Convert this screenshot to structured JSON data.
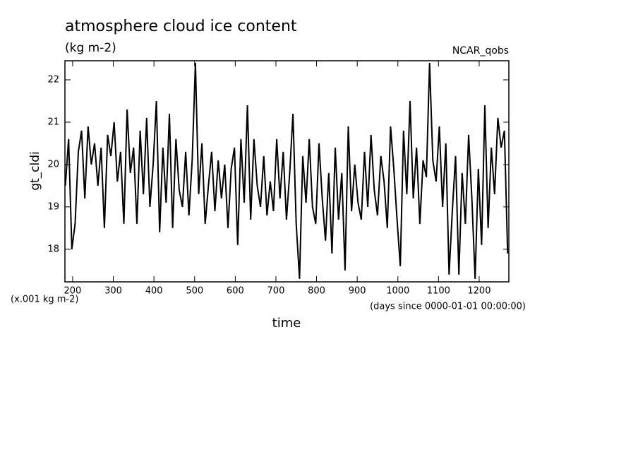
{
  "chart_data": {
    "type": "line",
    "title": "atmosphere cloud ice content",
    "subtitle": "(kg m-2)",
    "source": "NCAR_qobs",
    "y_label": "gt_cldi",
    "y_units": "(x.001 kg m-2)",
    "x_label": "time",
    "x_units": "(days since 0000-01-01 00:00:00)",
    "color": "#000000",
    "x": [
      182,
      190,
      198,
      206,
      214,
      222,
      230,
      238,
      246,
      254,
      262,
      270,
      278,
      286,
      294,
      302,
      310,
      318,
      326,
      334,
      342,
      350,
      358,
      366,
      374,
      382,
      390,
      398,
      406,
      414,
      422,
      430,
      438,
      446,
      454,
      462,
      470,
      478,
      486,
      494,
      502,
      510,
      518,
      526,
      534,
      542,
      550,
      558,
      566,
      574,
      582,
      590,
      598,
      606,
      614,
      622,
      630,
      638,
      646,
      654,
      662,
      670,
      678,
      686,
      694,
      702,
      710,
      718,
      726,
      734,
      742,
      750,
      758,
      766,
      774,
      782,
      790,
      798,
      806,
      814,
      822,
      830,
      838,
      846,
      854,
      862,
      870,
      878,
      886,
      894,
      902,
      910,
      918,
      926,
      934,
      942,
      950,
      958,
      966,
      974,
      982,
      990,
      998,
      1006,
      1014,
      1022,
      1030,
      1038,
      1046,
      1054,
      1062,
      1070,
      1078,
      1086,
      1094,
      1102,
      1110,
      1118,
      1126,
      1134,
      1142,
      1150,
      1158,
      1166,
      1174,
      1182,
      1190,
      1198,
      1206,
      1214,
      1222,
      1230,
      1238,
      1246,
      1254,
      1262,
      1270
    ],
    "values": [
      19.5,
      20.6,
      18.0,
      18.6,
      20.3,
      20.8,
      19.2,
      20.9,
      20.0,
      20.5,
      19.5,
      20.4,
      18.5,
      20.7,
      20.2,
      21.0,
      19.6,
      20.3,
      18.6,
      21.3,
      19.8,
      20.4,
      18.6,
      20.8,
      19.3,
      21.1,
      19.0,
      20.0,
      21.5,
      18.4,
      20.4,
      19.1,
      21.2,
      18.5,
      20.6,
      19.4,
      19.0,
      20.3,
      18.8,
      20.1,
      22.4,
      19.3,
      20.5,
      18.6,
      19.5,
      20.3,
      18.9,
      20.1,
      19.2,
      20.0,
      18.5,
      19.9,
      20.4,
      18.1,
      20.6,
      19.1,
      21.4,
      18.7,
      20.6,
      19.5,
      19.0,
      20.2,
      18.8,
      19.6,
      18.9,
      20.6,
      19.2,
      20.3,
      18.7,
      19.8,
      21.2,
      18.6,
      17.3,
      20.2,
      19.1,
      20.6,
      19.0,
      18.6,
      20.5,
      19.2,
      18.2,
      19.8,
      17.9,
      20.4,
      18.7,
      19.8,
      17.5,
      20.9,
      18.9,
      20.0,
      19.1,
      18.7,
      20.3,
      19.0,
      20.7,
      19.4,
      18.8,
      20.2,
      19.6,
      18.5,
      20.9,
      19.9,
      18.7,
      17.6,
      20.8,
      19.3,
      21.5,
      19.2,
      20.4,
      18.6,
      20.1,
      19.7,
      22.4,
      20.1,
      19.6,
      20.9,
      19.0,
      20.5,
      17.4,
      18.9,
      20.2,
      17.4,
      19.8,
      18.6,
      20.7,
      19.2,
      17.3,
      19.9,
      18.1,
      21.4,
      18.5,
      20.4,
      19.3,
      21.1,
      20.4,
      20.8,
      17.9
    ],
    "xlim": [
      181,
      1273
    ],
    "ylim": [
      17.23,
      22.45
    ],
    "xticks": [
      200,
      300,
      400,
      500,
      600,
      700,
      800,
      900,
      1000,
      1100,
      1200
    ],
    "yticks": [
      18,
      19,
      20,
      21,
      22
    ]
  }
}
